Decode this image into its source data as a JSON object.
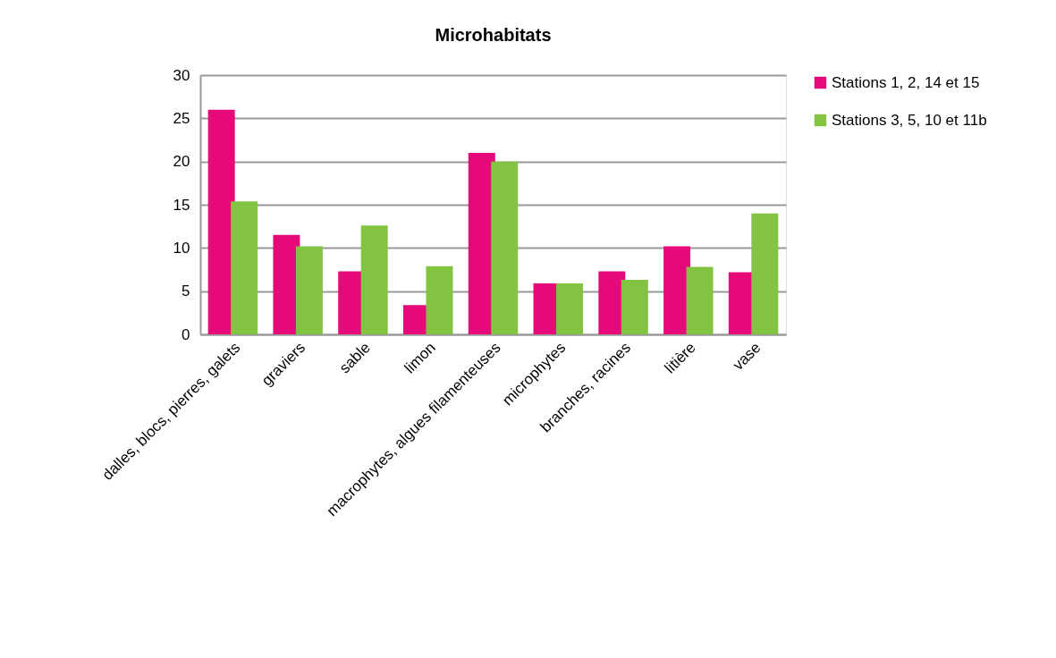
{
  "chart_data": {
    "type": "bar",
    "title": "Microhabitats",
    "categories": [
      "dalles, blocs, pierres, galets",
      "graviers",
      "sable",
      "limon",
      "macrophytes, algues filamenteuses",
      "microphytes",
      "branches, racines",
      "litière",
      "vase"
    ],
    "series": [
      {
        "name": "Stations 1, 2, 14 et 15",
        "color": "#e6097a",
        "values": [
          26,
          11.5,
          7.3,
          3.4,
          21,
          5.9,
          7.3,
          10.2,
          7.2
        ]
      },
      {
        "name": "Stations 3, 5, 10 et 11b",
        "color": "#82c341",
        "values": [
          15.4,
          10.2,
          12.6,
          7.9,
          20,
          5.9,
          6.3,
          7.8,
          14.0
        ]
      }
    ],
    "ylim": [
      0,
      30
    ],
    "yticks": [
      0,
      5,
      10,
      15,
      20,
      25,
      30
    ],
    "grid": "y",
    "legend": "right"
  }
}
